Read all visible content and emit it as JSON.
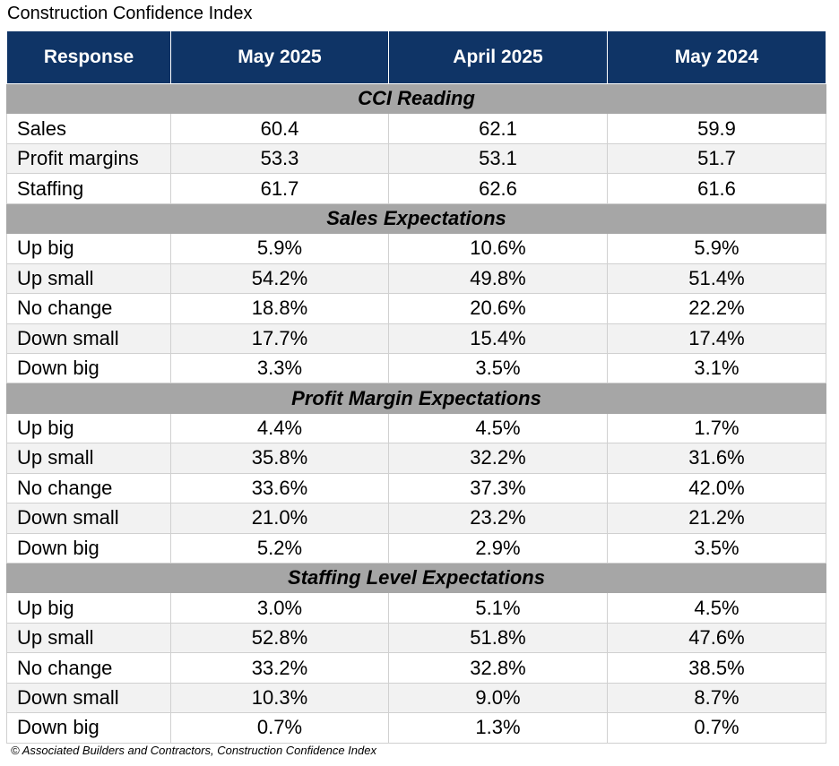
{
  "title": "Construction Confidence Index",
  "table": {
    "headers": [
      "Response",
      "May 2025",
      "April 2025",
      "May 2024"
    ],
    "sections": [
      {
        "title": "CCI Reading",
        "rows": [
          [
            "Sales",
            "60.4",
            "62.1",
            "59.9"
          ],
          [
            "Profit margins",
            "53.3",
            "53.1",
            "51.7"
          ],
          [
            "Staffing",
            "61.7",
            "62.6",
            "61.6"
          ]
        ]
      },
      {
        "title": "Sales Expectations",
        "rows": [
          [
            "Up big",
            "5.9%",
            "10.6%",
            "5.9%"
          ],
          [
            "Up small",
            "54.2%",
            "49.8%",
            "51.4%"
          ],
          [
            "No change",
            "18.8%",
            "20.6%",
            "22.2%"
          ],
          [
            "Down small",
            "17.7%",
            "15.4%",
            "17.4%"
          ],
          [
            "Down big",
            "3.3%",
            "3.5%",
            "3.1%"
          ]
        ]
      },
      {
        "title": "Profit Margin Expectations",
        "rows": [
          [
            "Up big",
            "4.4%",
            "4.5%",
            "1.7%"
          ],
          [
            "Up small",
            "35.8%",
            "32.2%",
            "31.6%"
          ],
          [
            "No change",
            "33.6%",
            "37.3%",
            "42.0%"
          ],
          [
            "Down small",
            "21.0%",
            "23.2%",
            "21.2%"
          ],
          [
            "Down big",
            "5.2%",
            "2.9%",
            "3.5%"
          ]
        ]
      },
      {
        "title": "Staffing Level Expectations",
        "rows": [
          [
            "Up big",
            "3.0%",
            "5.1%",
            "4.5%"
          ],
          [
            "Up small",
            "52.8%",
            "51.8%",
            "47.6%"
          ],
          [
            "No change",
            "33.2%",
            "32.8%",
            "38.5%"
          ],
          [
            "Down small",
            "10.3%",
            "9.0%",
            "8.7%"
          ],
          [
            "Down big",
            "0.7%",
            "1.3%",
            "0.7%"
          ]
        ]
      }
    ]
  },
  "footer": "© Associated Builders and Contractors, Construction Confidence Index"
}
